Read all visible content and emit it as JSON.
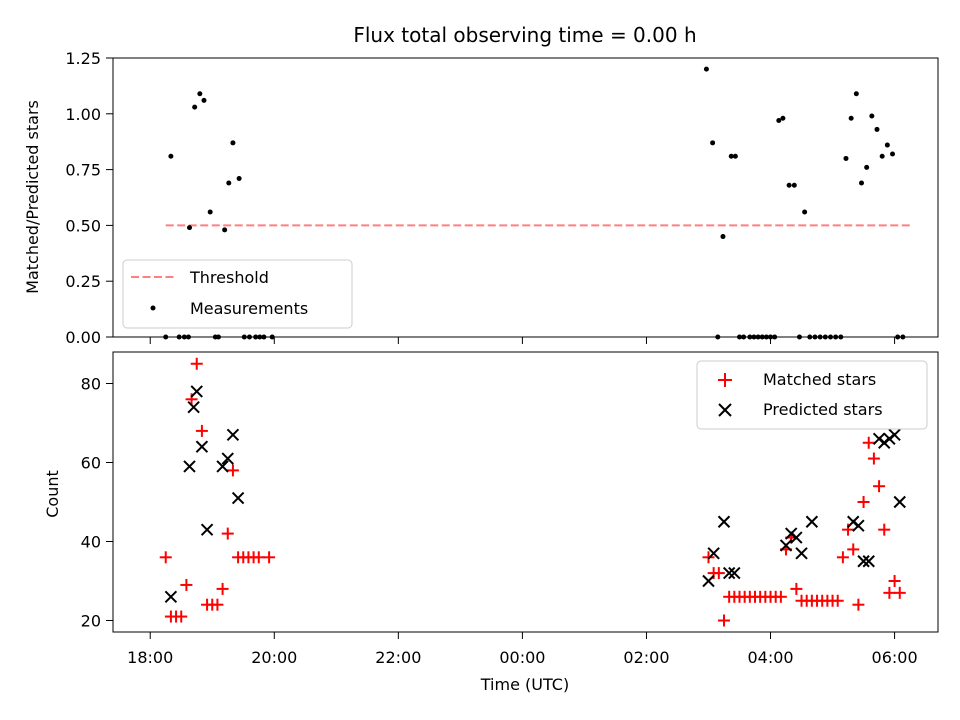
{
  "chart_data": [
    {
      "type": "scatter",
      "title": "Flux total observing time = 0.00 h",
      "xlabel": "",
      "ylabel": "Matched/Predicted stars",
      "ylim": [
        0.0,
        1.25
      ],
      "yticks": [
        "0.00",
        "0.25",
        "0.50",
        "0.75",
        "1.00",
        "1.25"
      ],
      "threshold": {
        "name": "Threshold",
        "value": 0.5,
        "x_range": [
          "18:15",
          "06:15"
        ],
        "color": "#ff7f7f"
      },
      "legend": {
        "position": "lower-left",
        "entries": [
          "Threshold",
          "Measurements"
        ]
      },
      "series": [
        {
          "name": "Measurements",
          "color": "#000000",
          "marker": "dot",
          "x": [
            "18:15",
            "18:20",
            "18:28",
            "18:33",
            "18:37",
            "18:38",
            "18:43",
            "18:48",
            "18:52",
            "18:58",
            "19:03",
            "19:06",
            "19:12",
            "19:16",
            "19:20",
            "19:26",
            "19:31",
            "19:36",
            "19:42",
            "19:46",
            "19:50",
            "19:58",
            "02:58",
            "03:04",
            "03:09",
            "03:14",
            "03:22",
            "03:26",
            "03:30",
            "03:34",
            "03:40",
            "03:44",
            "03:48",
            "03:52",
            "03:56",
            "04:00",
            "04:04",
            "04:08",
            "04:12",
            "04:18",
            "04:23",
            "04:28",
            "04:33",
            "04:38",
            "04:43",
            "04:48",
            "04:53",
            "04:58",
            "05:03",
            "05:08",
            "05:13",
            "05:18",
            "05:23",
            "05:28",
            "05:33",
            "05:38",
            "05:43",
            "05:48",
            "05:53",
            "05:58",
            "06:03",
            "06:08"
          ],
          "y": [
            0.0,
            0.81,
            0.0,
            0.0,
            0.0,
            0.49,
            1.03,
            1.09,
            1.06,
            0.56,
            0.0,
            0.0,
            0.48,
            0.69,
            0.87,
            0.71,
            0.0,
            0.0,
            0.0,
            0.0,
            0.0,
            0.0,
            1.2,
            0.87,
            0.0,
            0.45,
            0.81,
            0.81,
            0.0,
            0.0,
            0.0,
            0.0,
            0.0,
            0.0,
            0.0,
            0.0,
            0.0,
            0.97,
            0.98,
            0.68,
            0.68,
            0.0,
            0.56,
            0.0,
            0.0,
            0.0,
            0.0,
            0.0,
            0.0,
            0.0,
            0.8,
            0.98,
            1.09,
            0.69,
            0.76,
            0.99,
            0.93,
            0.81,
            0.86,
            0.82,
            0.0,
            0.0
          ]
        }
      ]
    },
    {
      "type": "scatter",
      "title": "",
      "xlabel": "Time (UTC)",
      "ylabel": "Count",
      "yticks": [
        "20",
        "40",
        "60",
        "80"
      ],
      "xticks": [
        "18:00",
        "20:00",
        "22:00",
        "00:00",
        "02:00",
        "04:00",
        "06:00"
      ],
      "legend": {
        "position": "top-right",
        "entries": [
          "Matched stars",
          "Predicted stars"
        ]
      },
      "series": [
        {
          "name": "Matched stars",
          "color": "#ff0000",
          "marker": "plus",
          "x": [
            "18:15",
            "18:20",
            "18:25",
            "18:30",
            "18:35",
            "18:40",
            "18:45",
            "18:50",
            "18:55",
            "19:00",
            "19:05",
            "19:10",
            "19:15",
            "19:20",
            "19:25",
            "19:30",
            "19:35",
            "19:40",
            "19:45",
            "19:55",
            "03:00",
            "03:05",
            "03:10",
            "03:15",
            "03:20",
            "03:25",
            "03:30",
            "03:35",
            "03:40",
            "03:45",
            "03:50",
            "03:55",
            "04:00",
            "04:05",
            "04:10",
            "04:15",
            "04:20",
            "04:25",
            "04:30",
            "04:35",
            "04:40",
            "04:45",
            "04:50",
            "04:55",
            "05:00",
            "05:05",
            "05:10",
            "05:15",
            "05:20",
            "05:25",
            "05:30",
            "05:35",
            "05:40",
            "05:45",
            "05:50",
            "05:55",
            "06:00",
            "06:05"
          ],
          "y": [
            36,
            21,
            21,
            21,
            29,
            76,
            85,
            68,
            24,
            24,
            24,
            28,
            42,
            58,
            36,
            36,
            36,
            36,
            36,
            36,
            36,
            32,
            32,
            20,
            26,
            26,
            26,
            26,
            26,
            26,
            26,
            26,
            26,
            26,
            26,
            38,
            41,
            28,
            25,
            25,
            25,
            25,
            25,
            25,
            25,
            25,
            36,
            43,
            38,
            24,
            50,
            65,
            61,
            54,
            43,
            27,
            30,
            27
          ]
        },
        {
          "name": "Predicted stars",
          "color": "#000000",
          "marker": "x",
          "x": [
            "18:20",
            "18:38",
            "18:42",
            "18:45",
            "18:50",
            "18:55",
            "19:10",
            "19:15",
            "19:20",
            "19:25",
            "03:00",
            "03:05",
            "03:15",
            "03:20",
            "03:25",
            "04:15",
            "04:20",
            "04:25",
            "04:30",
            "04:40",
            "05:20",
            "05:25",
            "05:30",
            "05:35",
            "05:45",
            "05:50",
            "05:55",
            "06:00",
            "06:05"
          ],
          "y": [
            26,
            59,
            74,
            78,
            64,
            43,
            59,
            61,
            67,
            51,
            30,
            37,
            45,
            32,
            32,
            39,
            42,
            41,
            37,
            45,
            45,
            44,
            35,
            35,
            66,
            65,
            66,
            67,
            50
          ]
        }
      ]
    }
  ]
}
